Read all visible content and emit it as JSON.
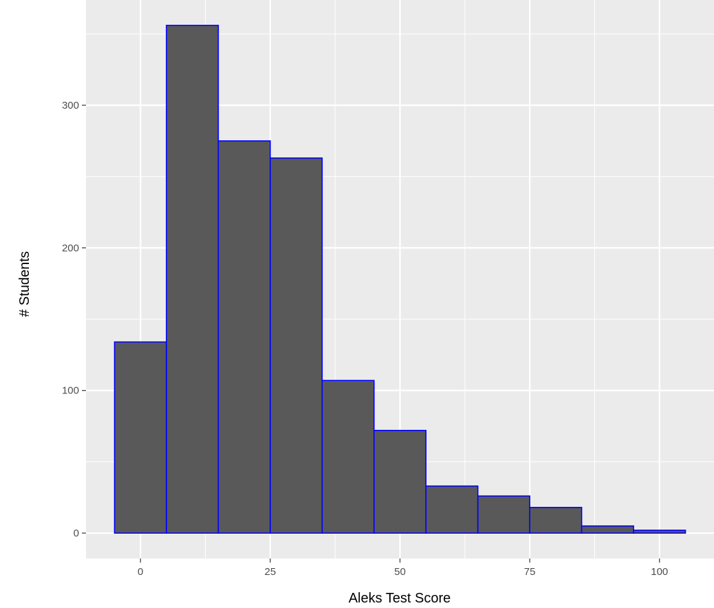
{
  "chart_data": {
    "type": "bar",
    "subtype": "histogram",
    "title": "",
    "xlabel": "Aleks Test Score",
    "ylabel": "# Students",
    "bins": [
      {
        "start": -5,
        "end": 5,
        "count": 134
      },
      {
        "start": 5,
        "end": 15,
        "count": 356
      },
      {
        "start": 15,
        "end": 25,
        "count": 275
      },
      {
        "start": 25,
        "end": 35,
        "count": 263
      },
      {
        "start": 35,
        "end": 45,
        "count": 107
      },
      {
        "start": 45,
        "end": 55,
        "count": 72
      },
      {
        "start": 55,
        "end": 65,
        "count": 33
      },
      {
        "start": 65,
        "end": 75,
        "count": 26
      },
      {
        "start": 75,
        "end": 85,
        "count": 18
      },
      {
        "start": 85,
        "end": 95,
        "count": 5
      },
      {
        "start": 95,
        "end": 105,
        "count": 2
      }
    ],
    "xlim": [
      -10.5,
      110.5
    ],
    "ylim": [
      -17.8,
      373.8
    ],
    "x_ticks": [
      0,
      25,
      50,
      75,
      100
    ],
    "y_ticks": [
      0,
      100,
      200,
      300
    ],
    "x_tick_labels": [
      "0",
      "25",
      "50",
      "75",
      "100"
    ],
    "y_tick_labels": [
      "0",
      "100",
      "200",
      "300"
    ],
    "grid": true,
    "legend": "none",
    "colors": {
      "panel_background": "#ebebeb",
      "grid_line": "#ffffff",
      "bar_fill": "#595959",
      "bar_outline": "#0000ff"
    }
  }
}
